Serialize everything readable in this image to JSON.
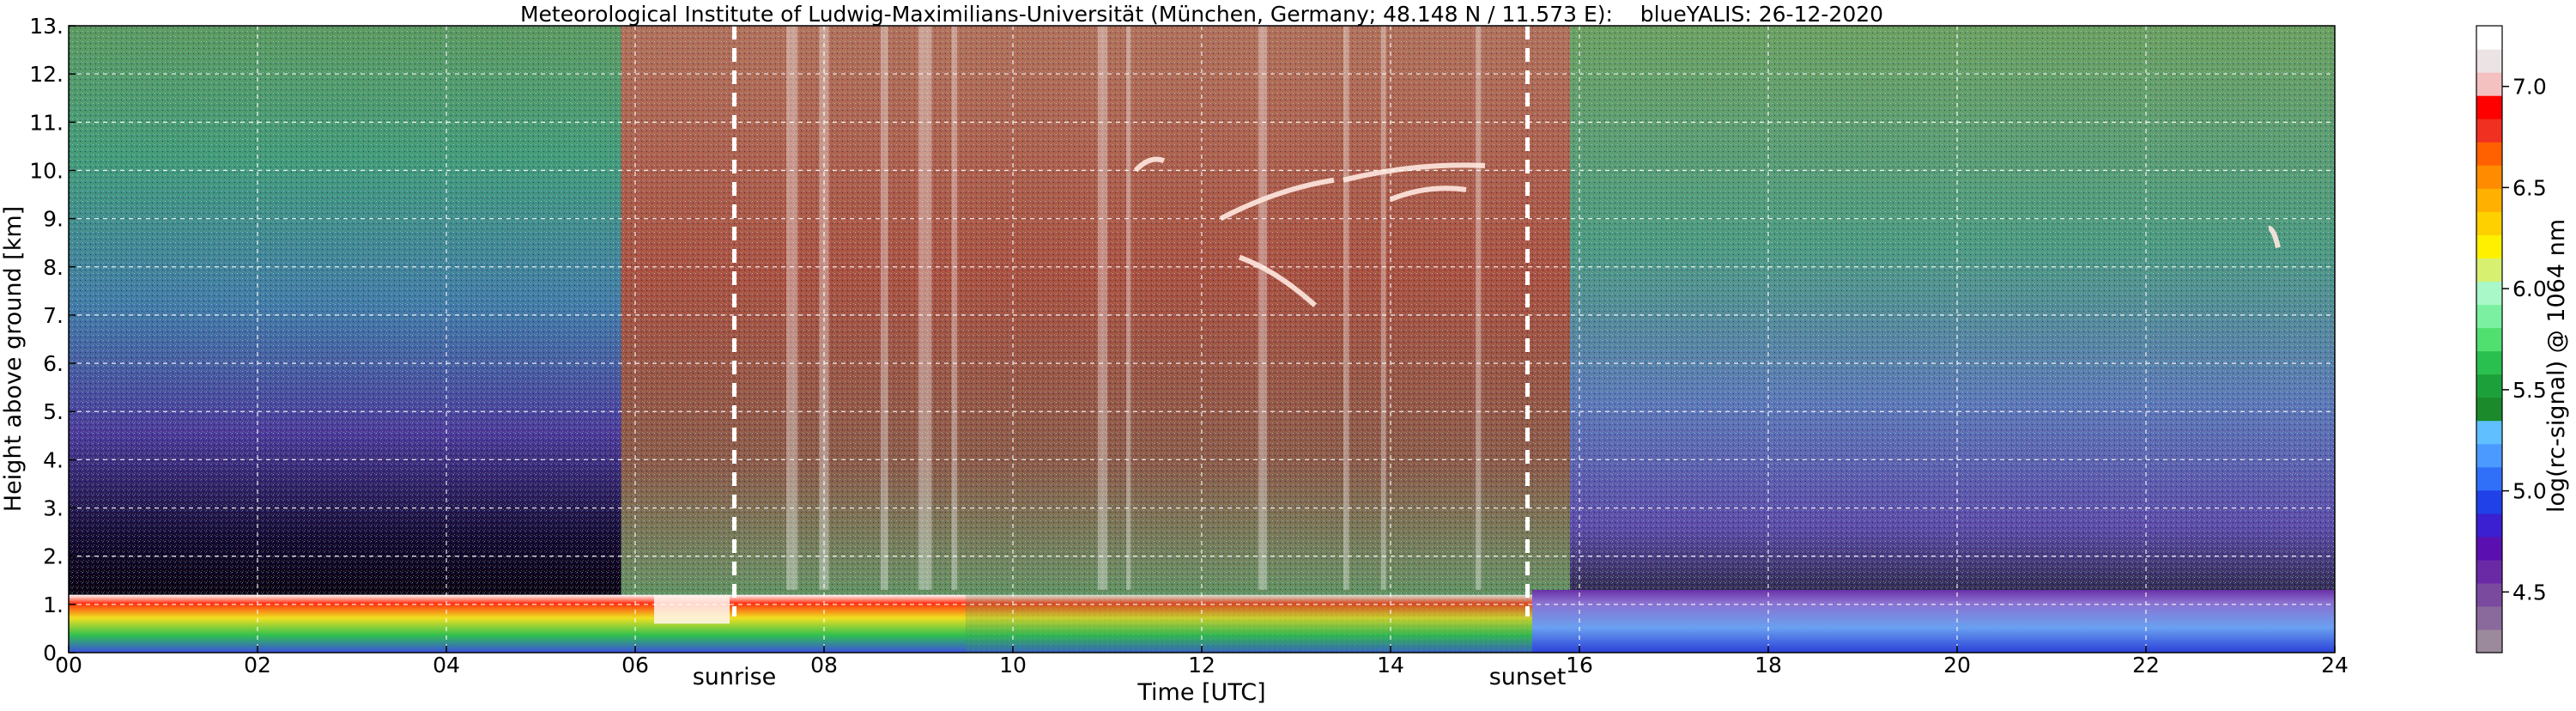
{
  "chart_data": {
    "type": "heatmap",
    "title": "Meteorological Institute of Ludwig-Maximilians-Universität (München, Germany; 48.148 N / 11.573 E):    blueYALIS: 26-12-2020",
    "xlabel": "Time [UTC]",
    "ylabel": "Height above ground [km]",
    "xlim": [
      0,
      24
    ],
    "ylim": [
      0,
      13
    ],
    "x_ticks": [
      0,
      2,
      4,
      6,
      8,
      10,
      12,
      14,
      16,
      18,
      20,
      22,
      24
    ],
    "x_tick_labels": [
      "00",
      "02",
      "04",
      "06",
      "08",
      "10",
      "12",
      "14",
      "16",
      "18",
      "20",
      "22",
      "24"
    ],
    "y_ticks": [
      0,
      1,
      2,
      3,
      4,
      5,
      6,
      7,
      8,
      9,
      10,
      11,
      12,
      13
    ],
    "y_tick_labels": [
      "0.",
      "1.",
      "2.",
      "3.",
      "4.",
      "5.",
      "6.",
      "7.",
      "8.",
      "9.",
      "10.",
      "11.",
      "12.",
      "13."
    ],
    "grid": true,
    "events": [
      {
        "label": "sunrise",
        "time": 7.05
      },
      {
        "label": "sunset",
        "time": 15.45
      }
    ],
    "colorbar": {
      "label": "log(rc-signal) @ 1064 nm",
      "range": [
        4.2,
        7.3
      ],
      "ticks": [
        4.5,
        5.0,
        5.5,
        6.0,
        6.5,
        7.0
      ],
      "tick_labels": [
        "4.5",
        "5.0",
        "5.5",
        "6.0",
        "6.5",
        "7.0"
      ],
      "colors": [
        "#9b8a9b",
        "#8a6a9c",
        "#7a4a9f",
        "#6a2aa6",
        "#5a10b0",
        "#3a20d0",
        "#2040e8",
        "#3070f8",
        "#4a9aff",
        "#60c0ff",
        "#1a8a2a",
        "#1ca03a",
        "#2ac050",
        "#50e070",
        "#7af0a0",
        "#a8f8c8",
        "#d8f070",
        "#fff000",
        "#ffd000",
        "#ffb000",
        "#ff8c00",
        "#ff6000",
        "#f03020",
        "#ff0000",
        "#f4c0c0",
        "#ece4e4",
        "#ffffff"
      ]
    },
    "layers": {
      "boundary_layer_top_km": 1.2,
      "cirrus_km": [
        8.0,
        10.3
      ]
    }
  }
}
